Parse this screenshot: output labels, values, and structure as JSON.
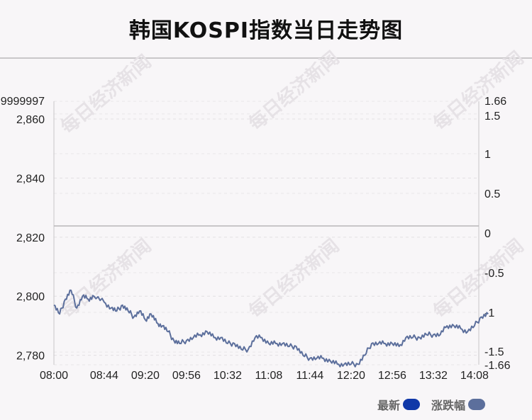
{
  "title": "韩国KOSPI指数当日走势图",
  "watermark": "每日经济新闻",
  "legend": [
    {
      "label": "最新",
      "color": "#1038a8"
    },
    {
      "label": "涨跌幅",
      "color": "#5c6f9c"
    }
  ],
  "chart_data": {
    "type": "line",
    "title": "韩国KOSPI指数当日走势图",
    "x_ticks": [
      "08:00",
      "08:44",
      "09:20",
      "09:56",
      "10:32",
      "11:08",
      "11:44",
      "12:20",
      "12:56",
      "13:32",
      "14:08"
    ],
    "y_left": {
      "min": 2776.8,
      "max": 2866.0,
      "ticks": [
        2780,
        2800,
        2820,
        2840,
        2860
      ],
      "top_label": "9999997"
    },
    "y_right": {
      "min": -1.66,
      "max": 1.66,
      "ticks": [
        -1.66,
        -1.5,
        -1,
        -0.5,
        0,
        0.5,
        1,
        1.5,
        1.66
      ]
    },
    "baseline": 2823.8,
    "grid": "dashed",
    "legend_position": "bottom-right",
    "series": [
      {
        "name": "最新",
        "color": "#5c6f9c",
        "x": [
          "08:00",
          "08:05",
          "08:10",
          "08:15",
          "08:20",
          "08:25",
          "08:30",
          "08:35",
          "08:44",
          "08:50",
          "08:55",
          "09:00",
          "09:05",
          "09:10",
          "09:15",
          "09:20",
          "09:25",
          "09:30",
          "09:35",
          "09:40",
          "09:45",
          "09:50",
          "09:56",
          "10:02",
          "10:08",
          "10:14",
          "10:20",
          "10:26",
          "10:32",
          "10:38",
          "10:44",
          "10:50",
          "10:56",
          "11:02",
          "11:08",
          "11:14",
          "11:20",
          "11:26",
          "11:32",
          "11:38",
          "11:44",
          "11:50",
          "11:56",
          "12:02",
          "12:08",
          "12:14",
          "12:20",
          "12:26",
          "12:32",
          "12:38",
          "12:44",
          "12:50",
          "12:56",
          "13:02",
          "13:08",
          "13:14",
          "13:20",
          "13:26",
          "13:32",
          "13:38",
          "13:44",
          "13:50",
          "13:56",
          "14:02",
          "14:08",
          "14:14",
          "14:20"
        ],
        "values": [
          2797,
          2794,
          2799,
          2802,
          2796,
          2800,
          2799,
          2800,
          2798,
          2796,
          2795,
          2797,
          2795,
          2793,
          2795,
          2792,
          2794,
          2791,
          2790,
          2788,
          2785,
          2784,
          2785,
          2786,
          2787,
          2788,
          2786,
          2786,
          2784,
          2784,
          2782,
          2782,
          2786,
          2786,
          2784,
          2784,
          2784,
          2783,
          2783,
          2780,
          2779,
          2779,
          2779,
          2778,
          2777,
          2777,
          2777,
          2777,
          2780,
          2784,
          2784,
          2784,
          2784,
          2783,
          2786,
          2786,
          2786,
          2787,
          2787,
          2787,
          2790,
          2790,
          2789,
          2788,
          2790,
          2793,
          2794
        ]
      }
    ]
  }
}
